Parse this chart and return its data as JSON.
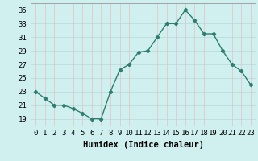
{
  "x": [
    0,
    1,
    2,
    3,
    4,
    5,
    6,
    7,
    8,
    9,
    10,
    11,
    12,
    13,
    14,
    15,
    16,
    17,
    18,
    19,
    20,
    21,
    22,
    23
  ],
  "y": [
    23.0,
    22.0,
    21.0,
    21.0,
    20.5,
    19.8,
    19.0,
    19.0,
    23.0,
    26.2,
    27.0,
    28.8,
    29.0,
    31.0,
    33.0,
    33.0,
    35.0,
    33.5,
    31.5,
    31.5,
    29.0,
    27.0,
    26.0,
    24.0
  ],
  "line_color": "#2e7d6e",
  "marker": "D",
  "marker_size": 2.2,
  "bg_color": "#d0f0f0",
  "grid_color_major": "#b8d8d8",
  "grid_color_red": "#e8c0c0",
  "xlabel": "Humidex (Indice chaleur)",
  "ylim": [
    18,
    36
  ],
  "xlim": [
    -0.5,
    23.5
  ],
  "yticks": [
    19,
    21,
    23,
    25,
    27,
    29,
    31,
    33,
    35
  ],
  "xtick_labels": [
    "0",
    "1",
    "2",
    "3",
    "4",
    "5",
    "6",
    "7",
    "8",
    "9",
    "10",
    "11",
    "12",
    "13",
    "14",
    "15",
    "16",
    "17",
    "18",
    "19",
    "20",
    "21",
    "22",
    "23"
  ],
  "xlabel_fontsize": 7.5,
  "tick_fontsize": 6.5
}
